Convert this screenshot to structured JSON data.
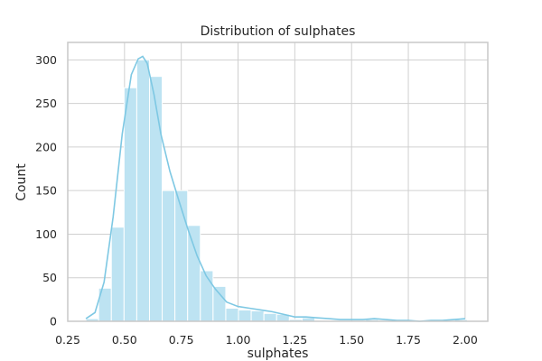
{
  "chart_data": {
    "type": "histogram",
    "title": "Distribution of sulphates",
    "xlabel": "sulphates",
    "ylabel": "Count",
    "xlim": [
      0.25,
      2.1
    ],
    "ylim": [
      0,
      320
    ],
    "xticks": [
      "0.25",
      "0.50",
      "0.75",
      "1.00",
      "1.25",
      "1.50",
      "1.75",
      "2.00"
    ],
    "yticks": [
      "0",
      "50",
      "100",
      "150",
      "200",
      "250",
      "300"
    ],
    "grid": true,
    "bin_width": 0.056,
    "bins": [
      {
        "x0": 0.33,
        "x1": 0.386,
        "count": 3
      },
      {
        "x0": 0.386,
        "x1": 0.442,
        "count": 38
      },
      {
        "x0": 0.442,
        "x1": 0.498,
        "count": 108
      },
      {
        "x0": 0.498,
        "x1": 0.554,
        "count": 268
      },
      {
        "x0": 0.554,
        "x1": 0.61,
        "count": 300
      },
      {
        "x0": 0.61,
        "x1": 0.666,
        "count": 281
      },
      {
        "x0": 0.666,
        "x1": 0.722,
        "count": 150
      },
      {
        "x0": 0.722,
        "x1": 0.778,
        "count": 150
      },
      {
        "x0": 0.778,
        "x1": 0.834,
        "count": 110
      },
      {
        "x0": 0.834,
        "x1": 0.89,
        "count": 58
      },
      {
        "x0": 0.89,
        "x1": 0.946,
        "count": 40
      },
      {
        "x0": 0.946,
        "x1": 1.002,
        "count": 15
      },
      {
        "x0": 1.002,
        "x1": 1.058,
        "count": 13
      },
      {
        "x0": 1.058,
        "x1": 1.114,
        "count": 12
      },
      {
        "x0": 1.114,
        "x1": 1.17,
        "count": 9
      },
      {
        "x0": 1.17,
        "x1": 1.226,
        "count": 8
      },
      {
        "x0": 1.226,
        "x1": 1.282,
        "count": 2
      },
      {
        "x0": 1.282,
        "x1": 1.338,
        "count": 4
      },
      {
        "x0": 1.338,
        "x1": 1.394,
        "count": 1
      },
      {
        "x0": 1.394,
        "x1": 1.45,
        "count": 0
      },
      {
        "x0": 1.45,
        "x1": 1.506,
        "count": 0
      },
      {
        "x0": 1.506,
        "x1": 1.562,
        "count": 1
      },
      {
        "x0": 1.562,
        "x1": 1.618,
        "count": 2
      },
      {
        "x0": 1.618,
        "x1": 1.674,
        "count": 1
      },
      {
        "x0": 1.674,
        "x1": 1.73,
        "count": 0
      },
      {
        "x0": 1.73,
        "x1": 1.786,
        "count": 0
      },
      {
        "x0": 1.786,
        "x1": 1.842,
        "count": 0
      },
      {
        "x0": 1.842,
        "x1": 1.898,
        "count": 0
      },
      {
        "x0": 1.898,
        "x1": 1.954,
        "count": 1
      },
      {
        "x0": 1.954,
        "x1": 2.01,
        "count": 2
      }
    ],
    "kde": {
      "x": [
        0.33,
        0.37,
        0.41,
        0.45,
        0.49,
        0.53,
        0.56,
        0.58,
        0.6,
        0.63,
        0.66,
        0.7,
        0.74,
        0.78,
        0.82,
        0.86,
        0.9,
        0.95,
        1.0,
        1.05,
        1.1,
        1.15,
        1.2,
        1.25,
        1.3,
        1.35,
        1.4,
        1.45,
        1.5,
        1.55,
        1.6,
        1.65,
        1.7,
        1.75,
        1.8,
        1.85,
        1.9,
        1.95,
        2.0
      ],
      "y": [
        3,
        10,
        45,
        120,
        215,
        283,
        301,
        304,
        296,
        260,
        215,
        172,
        138,
        105,
        75,
        52,
        37,
        22,
        17,
        15,
        13,
        11,
        8,
        5,
        5,
        4,
        3,
        2,
        2,
        2,
        3,
        2,
        1,
        1,
        0,
        1,
        1,
        2,
        3
      ]
    },
    "colors": {
      "bar_fill": "#bde3f2",
      "bar_edge": "#ffffff",
      "kde_line": "#7ec8e3",
      "grid": "#d0d0d0",
      "spine": "#c8c8c8"
    }
  }
}
